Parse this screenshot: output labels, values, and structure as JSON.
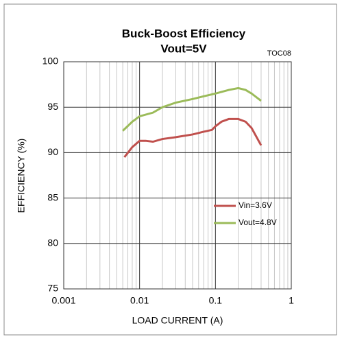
{
  "chart_data": {
    "type": "line",
    "title": "Buck-Boost Efficiency",
    "subtitle": "Vout=5V",
    "annotation": "TOC08",
    "x_label": "LOAD CURRENT (A)",
    "y_label": "EFFICIENCY (%)",
    "xscale": "log",
    "xlim": [
      0.001,
      1
    ],
    "xticks": [
      0.001,
      0.01,
      0.1,
      1
    ],
    "ylim": [
      75,
      100
    ],
    "yticks": [
      75,
      80,
      85,
      90,
      95,
      100
    ],
    "grid": true,
    "legend": "lower right",
    "series": [
      {
        "name": "Vin=3.6V",
        "color": "#c0504d",
        "x": [
          0.0063,
          0.008,
          0.01,
          0.012,
          0.015,
          0.02,
          0.03,
          0.05,
          0.07,
          0.09,
          0.1,
          0.12,
          0.15,
          0.2,
          0.25,
          0.3,
          0.4
        ],
        "values": [
          89.5,
          90.6,
          91.3,
          91.3,
          91.2,
          91.5,
          91.7,
          92.0,
          92.3,
          92.5,
          92.9,
          93.4,
          93.7,
          93.7,
          93.4,
          92.7,
          90.8
        ]
      },
      {
        "name": "Vout=4.8V",
        "color": "#9bbb59",
        "x": [
          0.006,
          0.008,
          0.01,
          0.015,
          0.02,
          0.03,
          0.05,
          0.07,
          0.1,
          0.15,
          0.2,
          0.25,
          0.3,
          0.4
        ],
        "values": [
          92.4,
          93.4,
          94.0,
          94.4,
          95.0,
          95.5,
          95.9,
          96.2,
          96.5,
          96.9,
          97.1,
          96.9,
          96.5,
          95.7
        ]
      }
    ]
  }
}
